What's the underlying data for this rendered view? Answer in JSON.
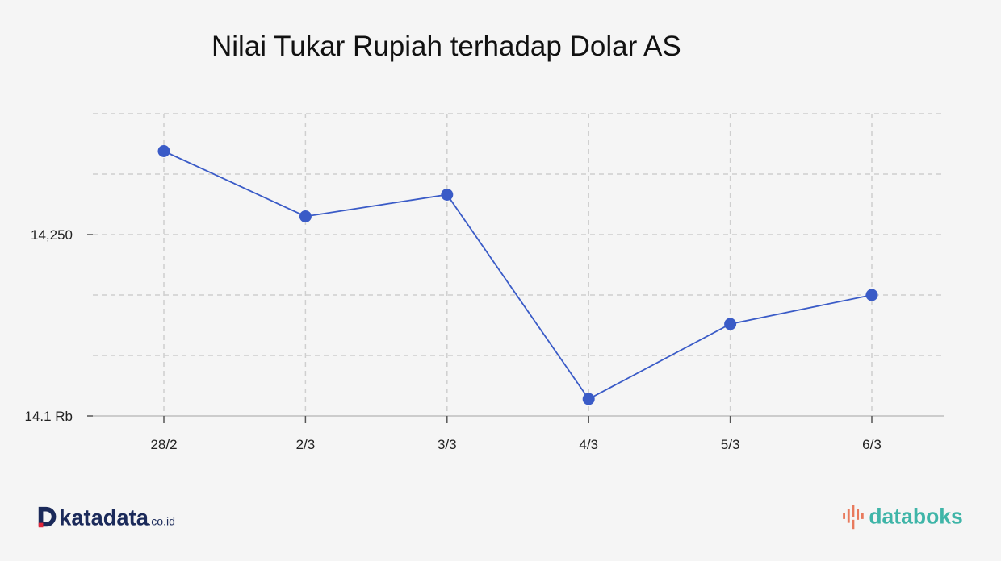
{
  "chart_data": {
    "type": "line",
    "title": "Nilai Tukar Rupiah terhadap Dolar AS",
    "categories": [
      "28/2",
      "2/3",
      "3/3",
      "4/3",
      "5/3",
      "6/3"
    ],
    "series": [
      {
        "values": [
          14319,
          14265,
          14283,
          14114,
          14176,
          14200
        ],
        "color": "#3a5bc7"
      }
    ],
    "ylim": [
      14100,
      14350
    ],
    "yticks": [
      {
        "value": 14100,
        "label": "14.1 Rb"
      },
      {
        "value": 14250,
        "label": "14,250"
      }
    ],
    "ygrid": [
      14150,
      14200,
      14250,
      14300,
      14350
    ],
    "grid": true,
    "xlabel": "",
    "ylabel": ""
  },
  "branding": {
    "left_logo": {
      "name": "katadata",
      "suffix": ".co.id"
    },
    "right_logo": {
      "name": "databoks"
    }
  }
}
